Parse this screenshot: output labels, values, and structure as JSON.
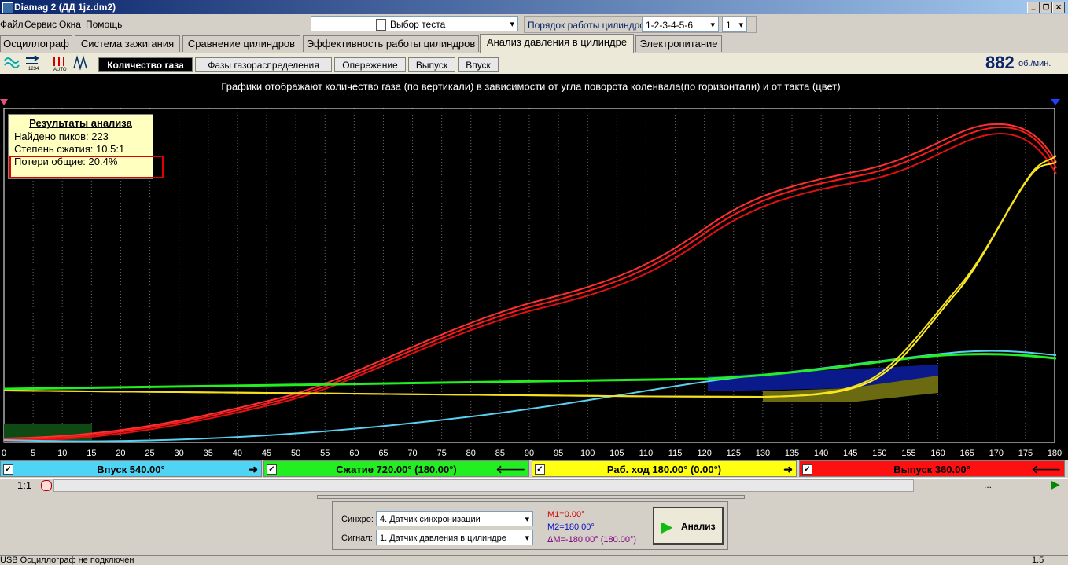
{
  "window": {
    "title": "Diamag 2 (ДД  1jz.dm2)"
  },
  "menu": [
    "Файл",
    "Сервис",
    "Окна",
    "Помощь"
  ],
  "toolbar": {
    "test_select": "Выбор теста",
    "cylinder_order_label": "Порядок работы цилиндров",
    "cylinder_order": "1-2-3-4-5-6",
    "cylinder": "1"
  },
  "tabs": [
    "Осциллограф",
    "Система зажигания",
    "Сравнение цилиндров",
    "Эффективность работы цилиндров",
    "Анализ давления в цилиндре",
    "Электропитание"
  ],
  "subtabs": [
    "Количество газа",
    "Фазы газораспределения",
    "Опережение",
    "Выпуск",
    "Впуск"
  ],
  "rpm": {
    "value": "882",
    "unit": "об./мин."
  },
  "plot": {
    "caption": "Графики отображают количество газа (по вертикали) в зависимости от угла поворота коленвала(по горизонтали) и от такта (цвет)",
    "xlim": [
      0,
      180
    ],
    "xticks": [
      0,
      5,
      10,
      15,
      20,
      25,
      30,
      35,
      40,
      45,
      50,
      55,
      60,
      65,
      70,
      75,
      80,
      85,
      90,
      95,
      100,
      105,
      110,
      115,
      120,
      125,
      130,
      135,
      140,
      145,
      150,
      155,
      160,
      165,
      170,
      175,
      180
    ]
  },
  "analysis": {
    "title": "Результаты анализа",
    "lines": [
      "Найдено пиков: 223",
      "Степень сжатия: 10.5:1",
      "Потери общие: 20.4%"
    ]
  },
  "phases": [
    "Впуск 540.00°",
    "Сжатие 720.00° (180.00°)",
    "Раб. ход 180.00° (0.00°)",
    "Выпуск 360.00°"
  ],
  "zoom": "1:1",
  "scroll_text": "...",
  "panel": {
    "sync_label": "Синхро:",
    "sync": "4.  Датчик синхронизации",
    "signal_label": "Сигнал:",
    "signal": "1.  Датчик давления в цилиндре",
    "m1": "M1=0.00°",
    "m2": "M2=180.00°",
    "dm": "ΔM=-180.00° (180.00°)",
    "button": "Анализ"
  },
  "status": [
    "USB Осциллограф не подключен",
    "1.5"
  ]
}
